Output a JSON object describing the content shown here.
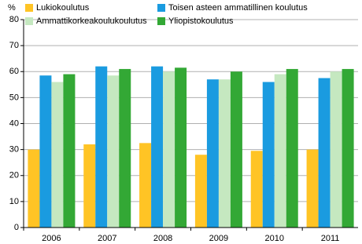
{
  "chart_data": {
    "type": "bar",
    "y_label": "%",
    "categories": [
      "2006",
      "2007",
      "2008",
      "2009",
      "2010",
      "2011"
    ],
    "series": [
      {
        "name": "Lukiokoulutus",
        "color": "#ffc425",
        "values": [
          30,
          32,
          32.5,
          28,
          29.5,
          30
        ]
      },
      {
        "name": "Toisen asteen ammatillinen koulutus",
        "color": "#1a9be0",
        "values": [
          58.5,
          62,
          62,
          57,
          56,
          57.5
        ]
      },
      {
        "name": "Ammattikorkeakoulukoulutus",
        "color": "#c5e8c0",
        "values": [
          56,
          58.5,
          60,
          57,
          59,
          60
        ]
      },
      {
        "name": "Yliopistokoulutus",
        "color": "#33a835",
        "values": [
          59,
          61,
          61.5,
          60,
          61,
          61
        ]
      }
    ],
    "ylim": [
      0,
      80
    ],
    "yticks": [
      0,
      10,
      20,
      30,
      40,
      50,
      60,
      70,
      80
    ],
    "grid": true,
    "legend": "top"
  }
}
